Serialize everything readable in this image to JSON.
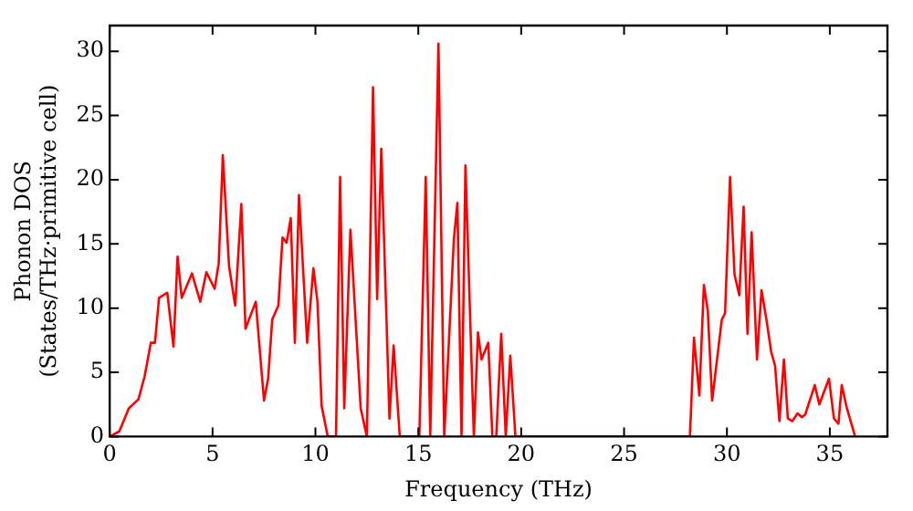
{
  "chart_data": {
    "type": "line",
    "xlabel": "Frequency (THz)",
    "ylabel": "Phonon DOS\n(States/THz·primitive cell)",
    "xlim": [
      0,
      37.8
    ],
    "ylim": [
      0,
      32
    ],
    "xticks": [
      0,
      5,
      10,
      15,
      20,
      25,
      30,
      35
    ],
    "yticks": [
      0,
      5,
      10,
      15,
      20,
      25,
      30
    ],
    "grid": false,
    "legend": false,
    "marker": "none",
    "line_style": "solid",
    "series": [
      {
        "color": "#ff0000",
        "x": [
          0,
          0.47,
          0.93,
          1.4,
          1.7,
          2.0,
          2.2,
          2.4,
          2.8,
          3.1,
          3.3,
          3.5,
          4.0,
          4.4,
          4.7,
          5.1,
          5.3,
          5.5,
          5.8,
          6.1,
          6.4,
          6.6,
          7.1,
          7.5,
          7.7,
          7.9,
          8.2,
          8.4,
          8.6,
          8.8,
          9.0,
          9.2,
          9.6,
          9.9,
          10.1,
          10.3,
          10.6,
          11.0,
          11.2,
          11.4,
          11.7,
          12.2,
          12.5,
          12.8,
          13.0,
          13.2,
          13.6,
          13.8,
          14.1,
          15.05,
          15.36,
          15.58,
          15.98,
          16.26,
          16.73,
          16.9,
          17.1,
          17.29,
          17.7,
          17.9,
          18.07,
          18.4,
          18.6,
          18.79,
          19.03,
          19.25,
          19.47,
          19.72,
          28.2,
          28.4,
          28.66,
          28.88,
          29.07,
          29.28,
          29.75,
          29.91,
          30.15,
          30.37,
          30.6,
          30.81,
          31.0,
          31.2,
          31.46,
          31.68,
          31.93,
          32.15,
          32.34,
          32.55,
          32.77,
          32.96,
          33.18,
          33.43,
          33.64,
          33.8,
          34.27,
          34.49,
          34.96,
          35.2,
          35.42,
          35.58,
          35.83,
          36.23
        ],
        "values": [
          0,
          0.4,
          2.2,
          2.9,
          4.7,
          7.3,
          7.3,
          10.8,
          11.2,
          7.0,
          14.0,
          10.8,
          12.7,
          10.5,
          12.8,
          11.5,
          13.5,
          21.9,
          13.3,
          10.2,
          18.1,
          8.4,
          10.5,
          2.8,
          4.5,
          9.1,
          10.2,
          15.5,
          15.1,
          17.0,
          7.3,
          18.8,
          7.3,
          13.1,
          10.5,
          2.4,
          0,
          0,
          20.2,
          2.2,
          16.1,
          2.2,
          0,
          27.2,
          10.7,
          22.4,
          1.4,
          7.1,
          0,
          0,
          20.2,
          0,
          30.6,
          0,
          15.4,
          18.2,
          0,
          21.1,
          0,
          8.1,
          6.0,
          7.3,
          0,
          0,
          8.0,
          0,
          6.3,
          0,
          0,
          7.7,
          3.2,
          11.8,
          9.8,
          2.8,
          9.1,
          9.6,
          20.2,
          12.6,
          11.0,
          17.9,
          8.0,
          15.9,
          6.0,
          11.4,
          9.0,
          6.6,
          5.5,
          1.2,
          6.0,
          1.4,
          1.2,
          1.8,
          1.5,
          1.7,
          4.0,
          2.5,
          4.5,
          1.4,
          1.0,
          4.0,
          2.2,
          0
        ]
      }
    ]
  }
}
